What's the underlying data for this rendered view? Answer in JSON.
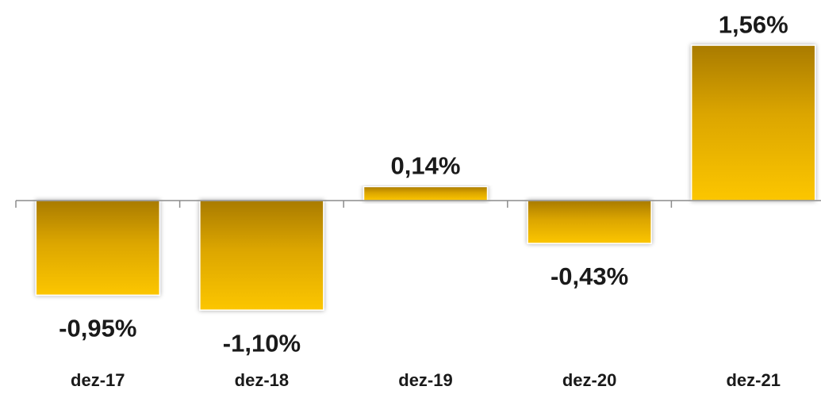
{
  "chart_data": {
    "type": "bar",
    "categories": [
      "dez-17",
      "dez-18",
      "dez-19",
      "dez-20",
      "dez-21"
    ],
    "values": [
      -0.95,
      -1.1,
      0.14,
      -0.43,
      1.56
    ],
    "value_labels": [
      "-0,95%",
      "-1,10%",
      "0,14%",
      "-0,43%",
      "1,56%"
    ],
    "color": "#fcc600"
  }
}
